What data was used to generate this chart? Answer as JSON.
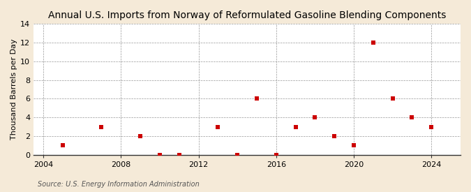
{
  "title": "Annual U.S. Imports from Norway of Reformulated Gasoline Blending Components",
  "ylabel": "Thousand Barrels per Day",
  "source": "Source: U.S. Energy Information Administration",
  "outer_bg": "#f5ead8",
  "plot_bg": "#ffffff",
  "x_data": [
    2005,
    2007,
    2009,
    2010,
    2011,
    2013,
    2014,
    2015,
    2016,
    2017,
    2018,
    2019,
    2020,
    2021,
    2022,
    2023,
    2024
  ],
  "y_data": [
    1,
    3,
    2,
    0,
    0,
    3,
    0,
    6,
    0,
    3,
    4,
    2,
    1,
    12,
    6,
    4,
    3
  ],
  "xlim": [
    2003.5,
    2025.5
  ],
  "ylim": [
    0,
    14
  ],
  "yticks": [
    0,
    2,
    4,
    6,
    8,
    10,
    12,
    14
  ],
  "xticks": [
    2004,
    2008,
    2012,
    2016,
    2020,
    2024
  ],
  "marker_color": "#cc0000",
  "marker_size": 18,
  "grid_color": "#999999",
  "title_fontsize": 10,
  "label_fontsize": 8,
  "tick_fontsize": 8,
  "source_fontsize": 7
}
